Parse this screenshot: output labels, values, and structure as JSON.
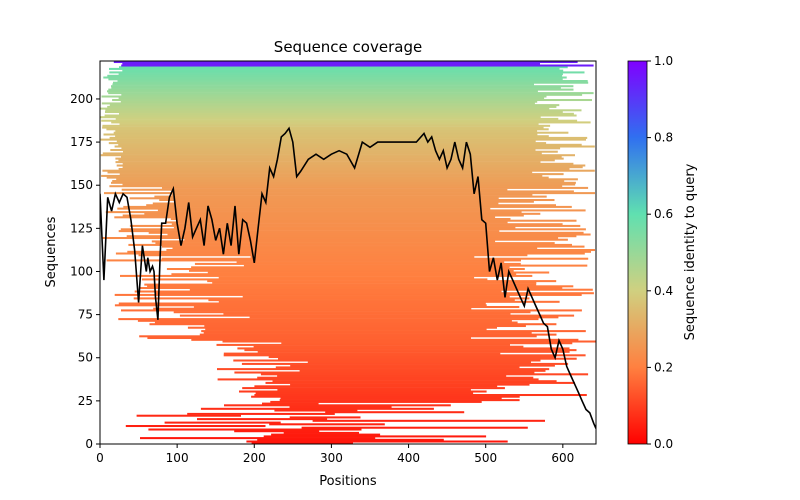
{
  "chart_data": {
    "type": "heatmap",
    "title": "Sequence coverage",
    "xlabel": "Positions",
    "ylabel": "Sequences",
    "xlim": [
      0,
      643
    ],
    "ylim": [
      0,
      222
    ],
    "x_ticks": [
      0,
      100,
      200,
      300,
      400,
      500,
      600
    ],
    "y_ticks": [
      0,
      25,
      50,
      75,
      100,
      125,
      150,
      175,
      200
    ],
    "colorbar": {
      "label": "Sequence identity to query",
      "range": [
        0.0,
        1.0
      ],
      "ticks": [
        "0.0",
        "0.2",
        "0.4",
        "0.6",
        "0.8",
        "1.0"
      ],
      "colormap": "rainbow_r"
    },
    "coverage_line": {
      "name": "coverage",
      "color": "#000000",
      "x": [
        0,
        5,
        10,
        15,
        20,
        25,
        30,
        35,
        40,
        45,
        50,
        55,
        60,
        62,
        65,
        68,
        70,
        72,
        75,
        78,
        80,
        85,
        90,
        95,
        100,
        105,
        110,
        115,
        120,
        125,
        130,
        135,
        140,
        145,
        150,
        155,
        160,
        165,
        170,
        175,
        180,
        185,
        190,
        195,
        200,
        205,
        210,
        215,
        220,
        225,
        230,
        235,
        240,
        245,
        250,
        255,
        260,
        270,
        280,
        290,
        300,
        310,
        320,
        330,
        340,
        350,
        360,
        370,
        380,
        390,
        400,
        410,
        420,
        425,
        430,
        435,
        440,
        445,
        450,
        455,
        460,
        465,
        470,
        475,
        480,
        485,
        490,
        495,
        500,
        505,
        510,
        515,
        520,
        525,
        530,
        535,
        540,
        545,
        550,
        555,
        560,
        565,
        570,
        575,
        580,
        585,
        590,
        595,
        600,
        605,
        610,
        615,
        620,
        625,
        630,
        635,
        640,
        643
      ],
      "y": [
        145,
        95,
        143,
        135,
        145,
        140,
        145,
        143,
        130,
        112,
        82,
        115,
        100,
        108,
        100,
        103,
        100,
        85,
        72,
        110,
        128,
        128,
        143,
        148,
        128,
        115,
        125,
        140,
        120,
        125,
        130,
        115,
        138,
        130,
        118,
        125,
        110,
        128,
        115,
        138,
        110,
        130,
        128,
        118,
        105,
        125,
        145,
        140,
        160,
        155,
        165,
        178,
        180,
        183,
        175,
        155,
        158,
        165,
        168,
        165,
        168,
        170,
        168,
        160,
        175,
        172,
        175,
        175,
        175,
        175,
        175,
        175,
        180,
        175,
        178,
        170,
        165,
        170,
        160,
        165,
        175,
        165,
        160,
        175,
        168,
        145,
        155,
        130,
        128,
        100,
        108,
        95,
        105,
        85,
        100,
        95,
        90,
        85,
        80,
        90,
        85,
        80,
        75,
        70,
        68,
        55,
        50,
        60,
        55,
        45,
        40,
        35,
        30,
        25,
        20,
        18,
        12,
        9
      ]
    }
  }
}
